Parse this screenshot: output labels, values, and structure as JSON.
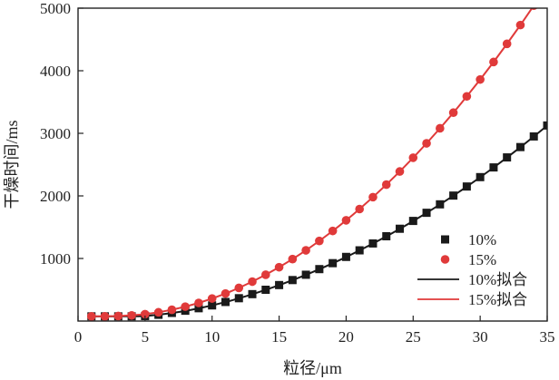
{
  "chart_data": {
    "type": "scatter",
    "title": "",
    "xlabel": "粒径/μm",
    "ylabel": "干燥时间/ms",
    "xlim": [
      0,
      35
    ],
    "ylim": [
      0,
      5000
    ],
    "xticks": [
      0,
      5,
      10,
      15,
      20,
      25,
      30,
      35
    ],
    "yticks": [
      1000,
      2000,
      3000,
      4000,
      5000
    ],
    "grid": false,
    "legend": "bottom-right",
    "series": [
      {
        "name": "10%",
        "kind": "points",
        "marker": "square",
        "color": "#1a1a1a",
        "x": [
          1,
          2,
          3,
          4,
          5,
          6,
          7,
          8,
          9,
          10,
          11,
          12,
          13,
          14,
          15,
          16,
          17,
          18,
          19,
          20,
          21,
          22,
          23,
          24,
          25,
          26,
          27,
          28,
          29,
          30,
          31,
          32,
          33,
          34,
          35
        ],
        "y": [
          75,
          75,
          75,
          75,
          80,
          100,
          130,
          165,
          205,
          250,
          305,
          365,
          430,
          500,
          575,
          655,
          740,
          830,
          925,
          1025,
          1130,
          1240,
          1355,
          1475,
          1600,
          1730,
          1865,
          2005,
          2150,
          2300,
          2455,
          2615,
          2780,
          2950,
          3125
        ]
      },
      {
        "name": "15%",
        "kind": "points",
        "marker": "circle",
        "color": "#e03a3a",
        "x": [
          1,
          2,
          3,
          4,
          5,
          6,
          7,
          8,
          9,
          10,
          11,
          12,
          13,
          14,
          15,
          16,
          17,
          18,
          19,
          20,
          21,
          22,
          23,
          24,
          25,
          26,
          27,
          28,
          29,
          30,
          31,
          32,
          33,
          34,
          35
        ],
        "y": [
          75,
          75,
          80,
          90,
          110,
          140,
          180,
          230,
          290,
          360,
          440,
          530,
          630,
          740,
          860,
          990,
          1130,
          1280,
          1440,
          1610,
          1790,
          1980,
          2180,
          2390,
          2610,
          2840,
          3080,
          3330,
          3590,
          3860,
          4140,
          4430,
          4730,
          5040,
          5360
        ]
      },
      {
        "name": "10%拟合",
        "kind": "line",
        "color": "#1a1a1a",
        "x": [
          1,
          3,
          5,
          7,
          9,
          11,
          13,
          15,
          17,
          19,
          21,
          23,
          25,
          27,
          29,
          31,
          33,
          35
        ],
        "y": [
          75,
          75,
          82,
          128,
          203,
          303,
          428,
          573,
          738,
          923,
          1128,
          1353,
          1598,
          1863,
          2148,
          2453,
          2778,
          3123
        ]
      },
      {
        "name": "15%拟合",
        "kind": "line",
        "color": "#e03a3a",
        "x": [
          1,
          3,
          5,
          7,
          9,
          11,
          13,
          15,
          17,
          19,
          21,
          23,
          25,
          27,
          29,
          31,
          33,
          35
        ],
        "y": [
          75,
          80,
          110,
          180,
          290,
          440,
          630,
          860,
          1130,
          1440,
          1790,
          2180,
          2610,
          3080,
          3590,
          4140,
          4730,
          5360
        ]
      }
    ]
  }
}
